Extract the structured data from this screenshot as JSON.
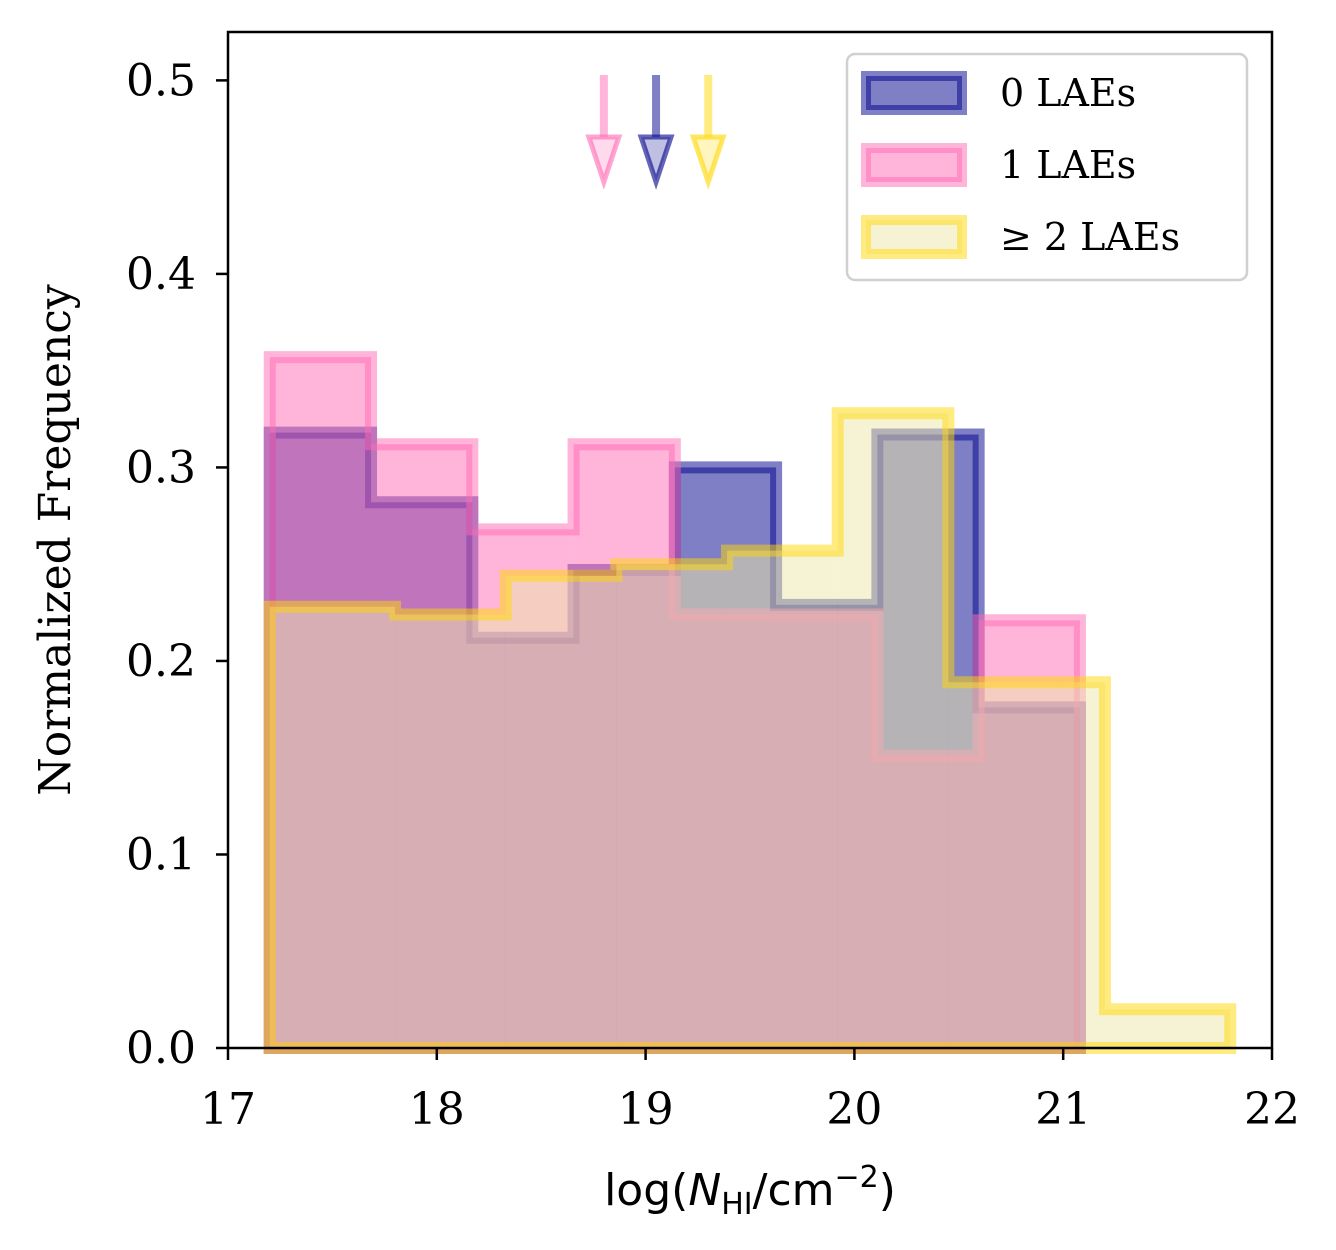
{
  "chart_data": {
    "type": "histogram",
    "title": "",
    "xlabel": "log(N_HI/cm^-2)",
    "xlabel_parts": {
      "pre": "log(",
      "N": "N",
      "sub": "HI",
      "mid": "/cm",
      "sup": "−2",
      "post": ")"
    },
    "ylabel": "Normalized Frequency",
    "xlim": [
      17,
      22
    ],
    "ylim": [
      0,
      0.525
    ],
    "xticks": [
      17,
      18,
      19,
      20,
      21,
      22
    ],
    "yticks": [
      0.0,
      0.1,
      0.2,
      0.3,
      0.4,
      0.5
    ],
    "ytick_labels": [
      "0.0",
      "0.1",
      "0.2",
      "0.3",
      "0.4",
      "0.5"
    ],
    "grid": false,
    "legend_position": "top-right",
    "series": [
      {
        "name": "0 LAEs",
        "legend_label": "0 LAEs",
        "color": "#00008b",
        "edges": [
          17.2,
          17.685,
          18.17,
          18.655,
          19.14,
          19.625,
          20.11,
          20.595,
          21.08
        ],
        "values": [
          0.318,
          0.282,
          0.212,
          0.247,
          0.3,
          0.229,
          0.317,
          0.176
        ],
        "median_arrow_x": 19.05
      },
      {
        "name": "1 LAEs",
        "legend_label": "1 LAEs",
        "color": "#ff69b4",
        "edges": [
          17.2,
          17.685,
          18.17,
          18.655,
          19.14,
          19.625,
          20.11,
          20.595,
          21.08
        ],
        "values": [
          0.357,
          0.312,
          0.268,
          0.312,
          0.224,
          0.224,
          0.151,
          0.221
        ],
        "median_arrow_x": 18.8
      },
      {
        "name": "≥2 LAEs",
        "legend_label": "≥ 2 LAEs",
        "color": "#ffd700",
        "fill_color": "#eee8aa",
        "edges": [
          17.2,
          17.8,
          18.33,
          18.86,
          19.39,
          19.92,
          20.45,
          20.98,
          21.2,
          21.8
        ],
        "values": [
          0.228,
          0.224,
          0.244,
          0.25,
          0.257,
          0.328,
          0.189,
          0.189,
          0.02
        ],
        "median_arrow_x": 19.3
      }
    ]
  }
}
